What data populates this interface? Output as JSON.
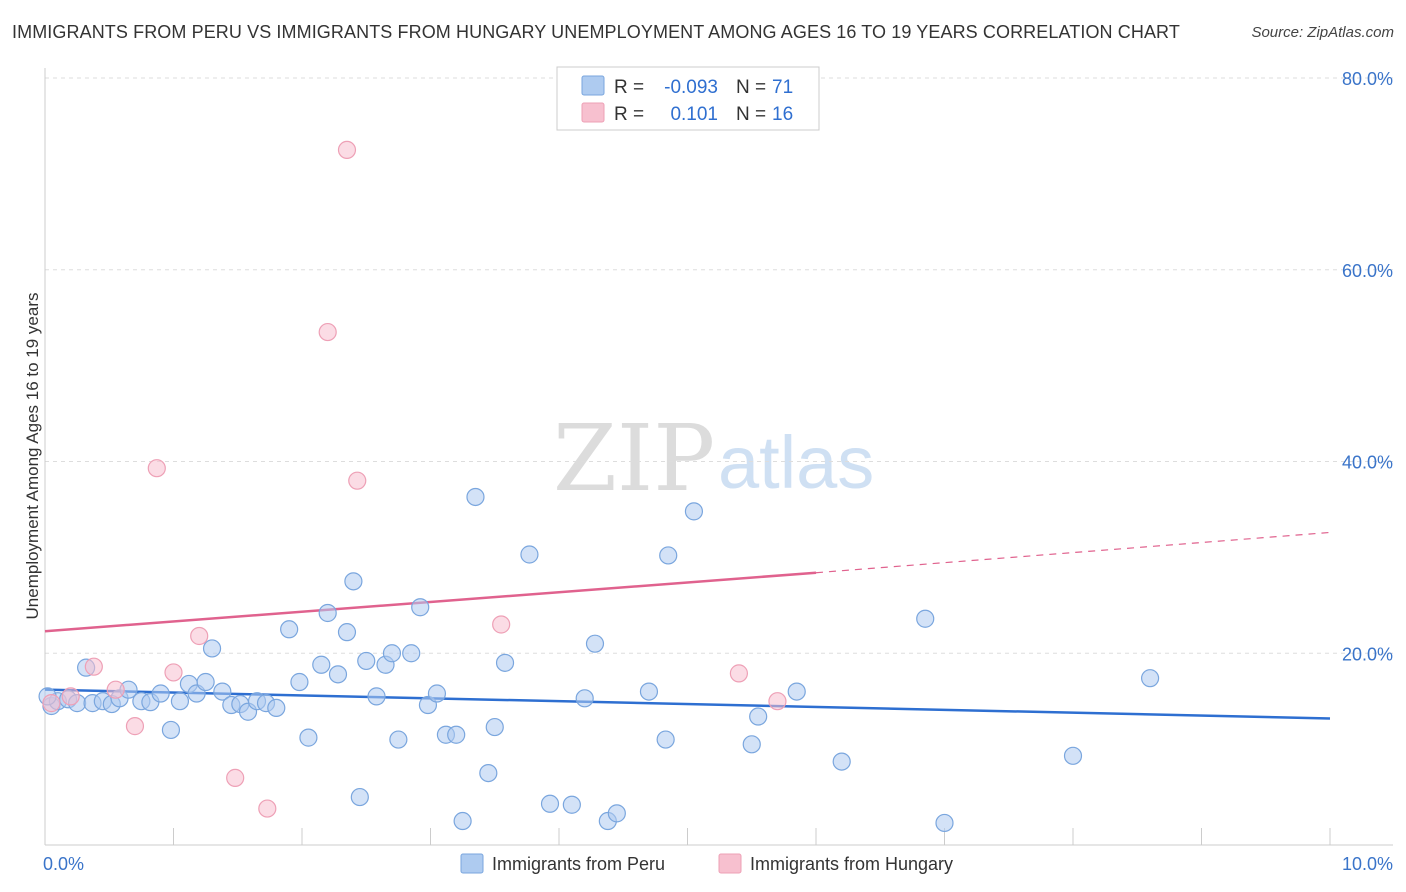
{
  "header": {
    "title": "IMMIGRANTS FROM PERU VS IMMIGRANTS FROM HUNGARY UNEMPLOYMENT AMONG AGES 16 TO 19 YEARS CORRELATION CHART",
    "source": "Source: ZipAtlas.com"
  },
  "watermark": {
    "zip": "ZIP",
    "atlas": "atlas"
  },
  "legend_top": {
    "peru": {
      "r_label": "R =",
      "r_value": "-0.093",
      "n_label": "N =",
      "n_value": "71"
    },
    "hungary": {
      "r_label": "R =",
      "r_value": "0.101",
      "n_label": "N =",
      "n_value": "16"
    }
  },
  "legend_bottom": {
    "peru": "Immigrants from Peru",
    "hungary": "Immigrants from Hungary"
  },
  "colors": {
    "peru_fill": "#aecbf0",
    "peru_stroke": "#7aa6de",
    "peru_line": "#2e6fd1",
    "hungary_fill": "#f7c0cf",
    "hungary_stroke": "#eea0b6",
    "hungary_line": "#e0628e",
    "tick_text": "#3a74c9",
    "grid": "#dddddd"
  },
  "chart_data": {
    "type": "scatter",
    "title": "IMMIGRANTS FROM PERU VS IMMIGRANTS FROM HUNGARY UNEMPLOYMENT AMONG AGES 16 TO 19 YEARS CORRELATION CHART",
    "xlabel": "",
    "ylabel": "Unemployment Among Ages 16 to 19 years",
    "xlim": [
      0,
      10
    ],
    "ylim": [
      0,
      80
    ],
    "x_tick_labels": [
      "0.0%",
      "10.0%"
    ],
    "y_ticks": [
      20,
      40,
      60,
      80
    ],
    "y_tick_labels": [
      "20.0%",
      "40.0%",
      "60.0%",
      "80.0%"
    ],
    "grid": true,
    "series": [
      {
        "name": "Immigrants from Peru",
        "r": -0.093,
        "n": 71,
        "trend": {
          "x0": 0,
          "y0": 16.2,
          "x1": 10,
          "y1": 13.2
        },
        "points": [
          {
            "x": 0.05,
            "y": 14.5
          },
          {
            "x": 0.1,
            "y": 15.0
          },
          {
            "x": 0.18,
            "y": 15.2
          },
          {
            "x": 0.25,
            "y": 14.8
          },
          {
            "x": 0.32,
            "y": 18.5
          },
          {
            "x": 0.37,
            "y": 14.8
          },
          {
            "x": 0.45,
            "y": 15.0
          },
          {
            "x": 0.52,
            "y": 14.7
          },
          {
            "x": 0.58,
            "y": 15.3
          },
          {
            "x": 0.65,
            "y": 16.2
          },
          {
            "x": 0.75,
            "y": 15.0
          },
          {
            "x": 0.82,
            "y": 14.9
          },
          {
            "x": 0.9,
            "y": 15.8
          },
          {
            "x": 0.98,
            "y": 12.0
          },
          {
            "x": 1.05,
            "y": 15.0
          },
          {
            "x": 1.12,
            "y": 16.8
          },
          {
            "x": 1.18,
            "y": 15.8
          },
          {
            "x": 1.25,
            "y": 17.0
          },
          {
            "x": 1.3,
            "y": 20.5
          },
          {
            "x": 1.38,
            "y": 16.0
          },
          {
            "x": 1.45,
            "y": 14.6
          },
          {
            "x": 1.52,
            "y": 14.7
          },
          {
            "x": 1.58,
            "y": 13.9
          },
          {
            "x": 1.65,
            "y": 15.0
          },
          {
            "x": 1.72,
            "y": 14.8
          },
          {
            "x": 1.8,
            "y": 14.3
          },
          {
            "x": 1.9,
            "y": 22.5
          },
          {
            "x": 1.98,
            "y": 17.0
          },
          {
            "x": 2.05,
            "y": 11.2
          },
          {
            "x": 2.15,
            "y": 18.8
          },
          {
            "x": 2.2,
            "y": 24.2
          },
          {
            "x": 2.28,
            "y": 17.8
          },
          {
            "x": 2.35,
            "y": 22.2
          },
          {
            "x": 2.4,
            "y": 27.5
          },
          {
            "x": 2.45,
            "y": 5.0
          },
          {
            "x": 2.5,
            "y": 19.2
          },
          {
            "x": 2.58,
            "y": 15.5
          },
          {
            "x": 2.65,
            "y": 18.8
          },
          {
            "x": 2.7,
            "y": 20.0
          },
          {
            "x": 2.75,
            "y": 11.0
          },
          {
            "x": 2.85,
            "y": 20.0
          },
          {
            "x": 2.92,
            "y": 24.8
          },
          {
            "x": 2.98,
            "y": 14.6
          },
          {
            "x": 3.05,
            "y": 15.8
          },
          {
            "x": 3.12,
            "y": 11.5
          },
          {
            "x": 3.2,
            "y": 11.5
          },
          {
            "x": 3.25,
            "y": 2.5
          },
          {
            "x": 3.35,
            "y": 36.3
          },
          {
            "x": 3.45,
            "y": 7.5
          },
          {
            "x": 3.5,
            "y": 12.3
          },
          {
            "x": 3.58,
            "y": 19.0
          },
          {
            "x": 3.77,
            "y": 30.3
          },
          {
            "x": 3.93,
            "y": 4.3
          },
          {
            "x": 4.1,
            "y": 4.2
          },
          {
            "x": 4.2,
            "y": 15.3
          },
          {
            "x": 4.28,
            "y": 21.0
          },
          {
            "x": 4.38,
            "y": 2.5
          },
          {
            "x": 4.45,
            "y": 3.3
          },
          {
            "x": 4.7,
            "y": 16.0
          },
          {
            "x": 4.83,
            "y": 11.0
          },
          {
            "x": 4.85,
            "y": 30.2
          },
          {
            "x": 5.05,
            "y": 34.8
          },
          {
            "x": 5.5,
            "y": 10.5
          },
          {
            "x": 5.55,
            "y": 13.4
          },
          {
            "x": 5.85,
            "y": 16.0
          },
          {
            "x": 6.2,
            "y": 8.7
          },
          {
            "x": 6.85,
            "y": 23.6
          },
          {
            "x": 7.0,
            "y": 2.3
          },
          {
            "x": 8.0,
            "y": 9.3
          },
          {
            "x": 8.6,
            "y": 17.4
          },
          {
            "x": 0.02,
            "y": 15.5
          }
        ]
      },
      {
        "name": "Immigrants from Hungary",
        "r": 0.101,
        "n": 16,
        "trend": {
          "x0": 0,
          "y0": 22.3,
          "x1": 6.0,
          "y1": 28.4
        },
        "trend_dashed": {
          "x0": 6.0,
          "y0": 28.4,
          "x1": 10.0,
          "y1": 32.6
        },
        "points": [
          {
            "x": 0.05,
            "y": 14.8
          },
          {
            "x": 0.2,
            "y": 15.5
          },
          {
            "x": 0.38,
            "y": 18.6
          },
          {
            "x": 0.55,
            "y": 16.2
          },
          {
            "x": 0.7,
            "y": 12.4
          },
          {
            "x": 0.87,
            "y": 39.3
          },
          {
            "x": 1.0,
            "y": 18.0
          },
          {
            "x": 1.2,
            "y": 21.8
          },
          {
            "x": 1.48,
            "y": 7.0
          },
          {
            "x": 1.73,
            "y": 3.8
          },
          {
            "x": 2.2,
            "y": 53.5
          },
          {
            "x": 2.35,
            "y": 72.5
          },
          {
            "x": 2.43,
            "y": 38.0
          },
          {
            "x": 3.55,
            "y": 23.0
          },
          {
            "x": 5.4,
            "y": 17.9
          },
          {
            "x": 5.7,
            "y": 15.0
          }
        ]
      }
    ]
  }
}
